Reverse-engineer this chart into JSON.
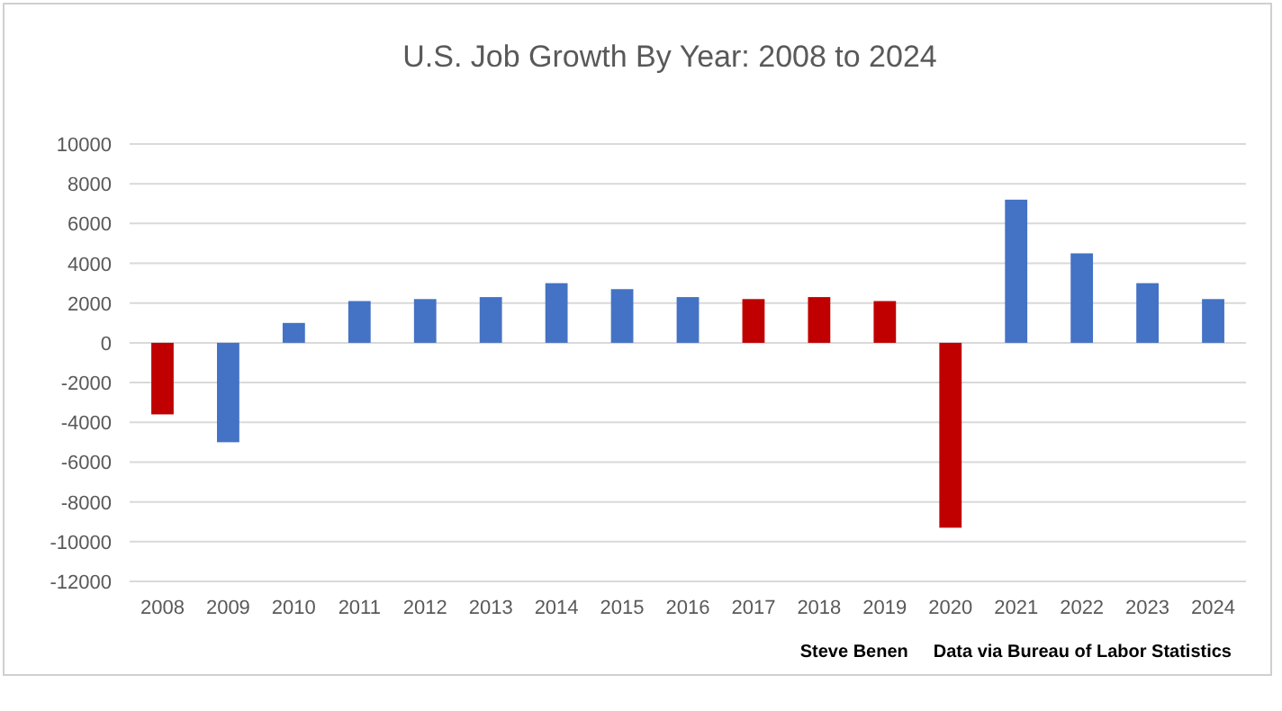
{
  "chart_data": {
    "type": "bar",
    "title": "U.S. Job Growth By Year: 2008 to 2024",
    "categories": [
      "2008",
      "2009",
      "2010",
      "2011",
      "2012",
      "2013",
      "2014",
      "2015",
      "2016",
      "2017",
      "2018",
      "2019",
      "2020",
      "2021",
      "2022",
      "2023",
      "2024"
    ],
    "values": [
      -3600,
      -5000,
      1000,
      2100,
      2200,
      2300,
      3000,
      2700,
      2300,
      2200,
      2300,
      2100,
      -9300,
      7200,
      4500,
      3000,
      2200
    ],
    "colors": [
      "#c00000",
      "#4472c4",
      "#4472c4",
      "#4472c4",
      "#4472c4",
      "#4472c4",
      "#4472c4",
      "#4472c4",
      "#4472c4",
      "#c00000",
      "#c00000",
      "#c00000",
      "#c00000",
      "#4472c4",
      "#4472c4",
      "#4472c4",
      "#4472c4"
    ],
    "ylim": [
      -12000,
      10000
    ],
    "yticks": [
      -12000,
      -10000,
      -8000,
      -6000,
      -4000,
      -2000,
      0,
      2000,
      4000,
      6000,
      8000,
      10000
    ],
    "grid": "y",
    "annotations": [
      "Steve Benen",
      "Data via Bureau of Labor Statistics"
    ]
  }
}
